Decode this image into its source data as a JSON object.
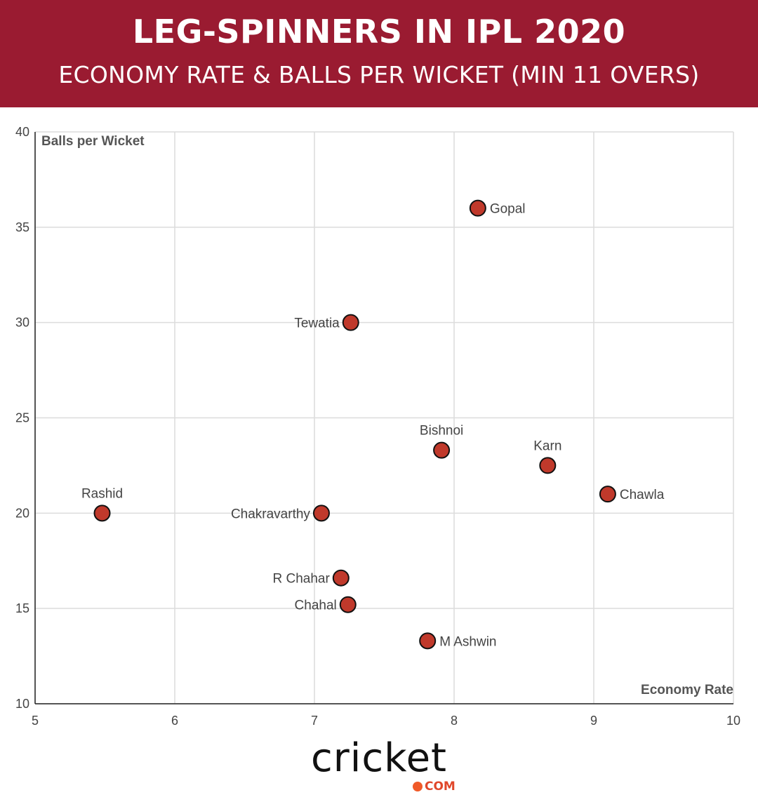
{
  "header": {
    "title": "LEG-SPINNERS IN IPL 2020",
    "subtitle": "ECONOMY RATE & BALLS PER WICKET (MIN 11 OVERS)"
  },
  "colors": {
    "header_bg": "#9a1b31",
    "point_fill": "#c0392b",
    "point_stroke": "#111111",
    "grid": "#dcdcdc",
    "axis_label": "#555555"
  },
  "logo": {
    "word": "cricket",
    "suffix": "COM",
    "icon": "cricket-ball-icon"
  },
  "chart_data": {
    "type": "scatter",
    "xlabel": "Economy Rate",
    "ylabel": "Balls per Wicket",
    "xlim": [
      5,
      10
    ],
    "ylim": [
      10,
      40
    ],
    "xticks": [
      5,
      6,
      7,
      8,
      9,
      10
    ],
    "yticks": [
      10,
      15,
      20,
      25,
      30,
      35,
      40
    ],
    "grid": true,
    "points": [
      {
        "label": "Gopal",
        "x": 8.17,
        "y": 36.0,
        "label_pos": "right"
      },
      {
        "label": "Tewatia",
        "x": 7.26,
        "y": 30.0,
        "label_pos": "left"
      },
      {
        "label": "Bishnoi",
        "x": 7.91,
        "y": 23.3,
        "label_pos": "top"
      },
      {
        "label": "Karn",
        "x": 8.67,
        "y": 22.5,
        "label_pos": "top"
      },
      {
        "label": "Chawla",
        "x": 9.1,
        "y": 21.0,
        "label_pos": "right"
      },
      {
        "label": "Rashid",
        "x": 5.48,
        "y": 20.0,
        "label_pos": "top"
      },
      {
        "label": "Chakravarthy",
        "x": 7.05,
        "y": 20.0,
        "label_pos": "left"
      },
      {
        "label": "R Chahar",
        "x": 7.19,
        "y": 16.6,
        "label_pos": "left"
      },
      {
        "label": "Chahal",
        "x": 7.24,
        "y": 15.2,
        "label_pos": "left"
      },
      {
        "label": "M Ashwin",
        "x": 7.81,
        "y": 13.3,
        "label_pos": "right"
      }
    ]
  }
}
